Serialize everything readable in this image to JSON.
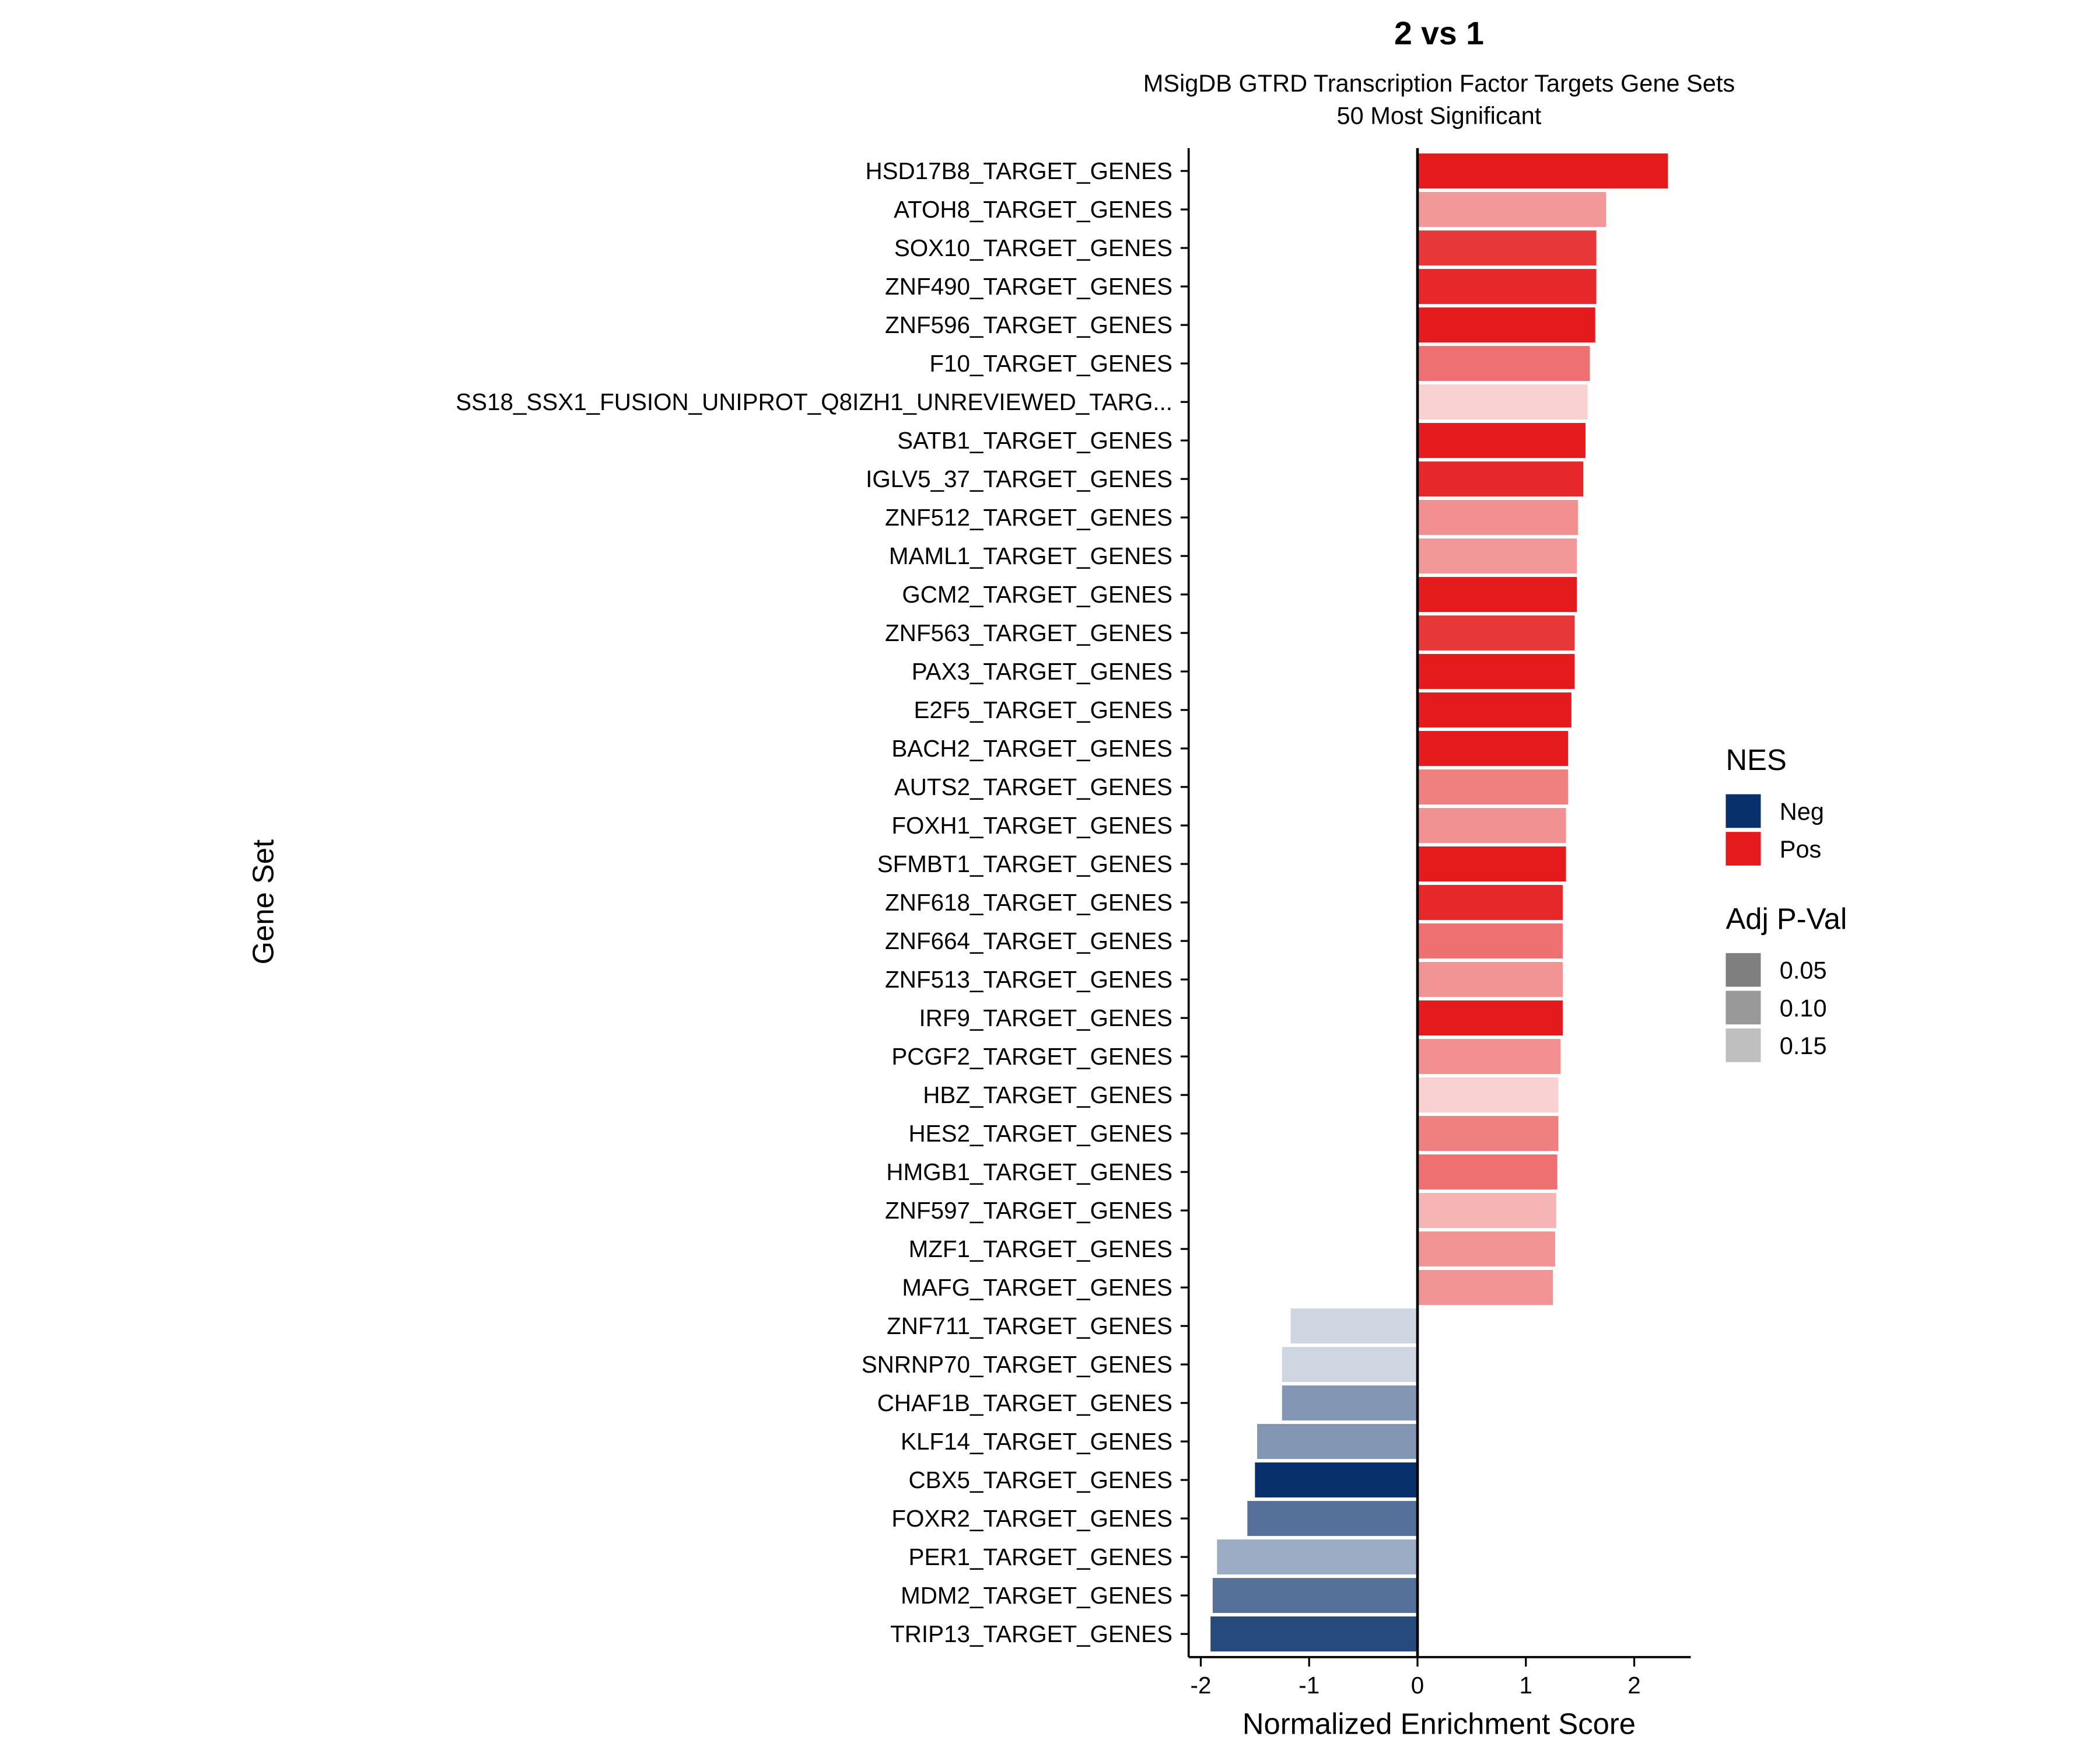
{
  "chart_data": {
    "type": "bar",
    "orientation": "horizontal",
    "title": "2 vs 1",
    "subtitle_line1": "MSigDB GTRD Transcription Factor Targets Gene Sets",
    "subtitle_line2": "50 Most Significant",
    "xlabel": "Normalized Enrichment Score",
    "ylabel": "Gene Set",
    "xlim": [
      -2.1,
      2.5
    ],
    "xticks": [
      -2,
      -1,
      0,
      1,
      2
    ],
    "xtick_labels": [
      "-2",
      "-1",
      "0",
      "1",
      "2"
    ],
    "grid": false,
    "colors": {
      "Neg": "#08306B",
      "Pos": "#E41A1C"
    },
    "legend": {
      "placement": "right",
      "color_title": "NES",
      "color_items": [
        {
          "label": "Neg",
          "color": "#08306B"
        },
        {
          "label": "Pos",
          "color": "#E41A1C"
        }
      ],
      "alpha_title": "Adj P-Val",
      "alpha_items": [
        {
          "label": "0.05",
          "color": "#7F7F7F"
        },
        {
          "label": "0.10",
          "color": "#999999"
        },
        {
          "label": "0.15",
          "color": "#BFBFBF"
        }
      ]
    },
    "bars": [
      {
        "label": "HSD17B8_TARGET_GENES",
        "nes": 2.31,
        "padj": 0.01
      },
      {
        "label": "ATOH8_TARGET_GENES",
        "nes": 1.74,
        "padj": 0.075
      },
      {
        "label": "SOX10_TARGET_GENES",
        "nes": 1.65,
        "padj": 0.02
      },
      {
        "label": "ZNF490_TARGET_GENES",
        "nes": 1.65,
        "padj": 0.015
      },
      {
        "label": "ZNF596_TARGET_GENES",
        "nes": 1.64,
        "padj": 0.01
      },
      {
        "label": "F10_TARGET_GENES",
        "nes": 1.59,
        "padj": 0.04
      },
      {
        "label": "SS18_SSX1_FUSION_UNIPROT_Q8IZH1_UNREVIEWED_TARG...",
        "nes": 1.57,
        "padj": 0.17
      },
      {
        "label": "SATB1_TARGET_GENES",
        "nes": 1.55,
        "padj": 0.01
      },
      {
        "label": "IGLV5_37_TARGET_GENES",
        "nes": 1.53,
        "padj": 0.015
      },
      {
        "label": "ZNF512_TARGET_GENES",
        "nes": 1.48,
        "padj": 0.055
      },
      {
        "label": "MAML1_TARGET_GENES",
        "nes": 1.47,
        "padj": 0.075
      },
      {
        "label": "GCM2_TARGET_GENES",
        "nes": 1.47,
        "padj": 0.01
      },
      {
        "label": "ZNF563_TARGET_GENES",
        "nes": 1.45,
        "padj": 0.02
      },
      {
        "label": "PAX3_TARGET_GENES",
        "nes": 1.45,
        "padj": 0.01
      },
      {
        "label": "E2F5_TARGET_GENES",
        "nes": 1.42,
        "padj": 0.01
      },
      {
        "label": "BACH2_TARGET_GENES",
        "nes": 1.39,
        "padj": 0.01
      },
      {
        "label": "AUTS2_TARGET_GENES",
        "nes": 1.39,
        "padj": 0.045
      },
      {
        "label": "FOXH1_TARGET_GENES",
        "nes": 1.37,
        "padj": 0.06
      },
      {
        "label": "SFMBT1_TARGET_GENES",
        "nes": 1.37,
        "padj": 0.01
      },
      {
        "label": "ZNF618_TARGET_GENES",
        "nes": 1.34,
        "padj": 0.015
      },
      {
        "label": "ZNF664_TARGET_GENES",
        "nes": 1.34,
        "padj": 0.04
      },
      {
        "label": "ZNF513_TARGET_GENES",
        "nes": 1.34,
        "padj": 0.065
      },
      {
        "label": "IRF9_TARGET_GENES",
        "nes": 1.34,
        "padj": 0.01
      },
      {
        "label": "PCGF2_TARGET_GENES",
        "nes": 1.32,
        "padj": 0.055
      },
      {
        "label": "HBZ_TARGET_GENES",
        "nes": 1.3,
        "padj": 0.17
      },
      {
        "label": "HES2_TARGET_GENES",
        "nes": 1.3,
        "padj": 0.045
      },
      {
        "label": "HMGB1_TARGET_GENES",
        "nes": 1.29,
        "padj": 0.04
      },
      {
        "label": "ZNF597_TARGET_GENES",
        "nes": 1.28,
        "padj": 0.125
      },
      {
        "label": "MZF1_TARGET_GENES",
        "nes": 1.27,
        "padj": 0.065
      },
      {
        "label": "MAFG_TARGET_GENES",
        "nes": 1.25,
        "padj": 0.065
      },
      {
        "label": "ZNF711_TARGET_GENES",
        "nes": -1.17,
        "padj": 0.17
      },
      {
        "label": "SNRNP70_TARGET_GENES",
        "nes": -1.25,
        "padj": 0.17
      },
      {
        "label": "CHAF1B_TARGET_GENES",
        "nes": -1.25,
        "padj": 0.05
      },
      {
        "label": "KLF14_TARGET_GENES",
        "nes": -1.48,
        "padj": 0.05
      },
      {
        "label": "CBX5_TARGET_GENES",
        "nes": -1.5,
        "padj": 0.01
      },
      {
        "label": "FOXR2_TARGET_GENES",
        "nes": -1.57,
        "padj": 0.035
      },
      {
        "label": "PER1_TARGET_GENES",
        "nes": -1.85,
        "padj": 0.1
      },
      {
        "label": "MDM2_TARGET_GENES",
        "nes": -1.89,
        "padj": 0.035
      },
      {
        "label": "TRIP13_TARGET_GENES",
        "nes": -1.91,
        "padj": 0.02
      }
    ]
  }
}
